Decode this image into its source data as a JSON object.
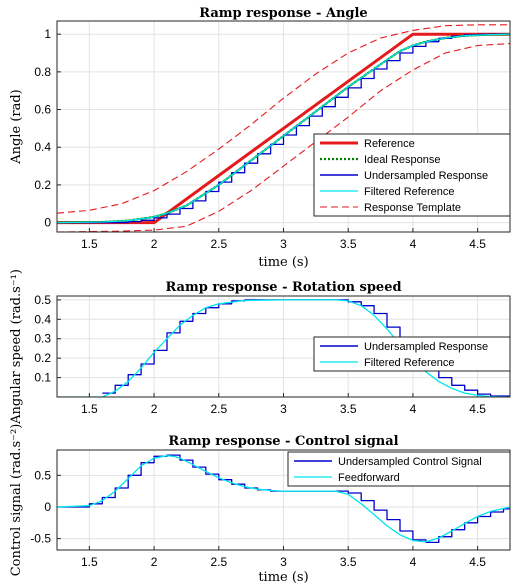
{
  "chart_data": [
    {
      "type": "line",
      "title": "Ramp response - Angle",
      "xlabel": "time (s)",
      "ylabel": "Angle (rad)",
      "xlim": [
        1.25,
        4.75
      ],
      "ylim": [
        -0.05,
        1.07
      ],
      "xticks": [
        "1.5",
        "2",
        "2.5",
        "3",
        "3.5",
        "4",
        "4.5"
      ],
      "yticks": [
        "0",
        "0.2",
        "0.4",
        "0.6",
        "0.8",
        "1"
      ],
      "grid": true,
      "legend_position": "lower-right",
      "series": [
        {
          "name": "Reference",
          "color": "#e41a1c",
          "style": "solid-thick",
          "x": [
            1.25,
            2.0,
            4.0,
            4.75
          ],
          "y": [
            0.0,
            0.0,
            1.0,
            1.0
          ]
        },
        {
          "name": "Ideal Response",
          "color": "#008000",
          "style": "dotted",
          "x": [
            1.25,
            1.6,
            1.8,
            2.0,
            2.1,
            2.25,
            2.5,
            2.75,
            3.0,
            3.25,
            3.5,
            3.75,
            3.9,
            4.0,
            4.1,
            4.25,
            4.4,
            4.6,
            4.75
          ],
          "y": [
            0.0,
            0.003,
            0.01,
            0.03,
            0.05,
            0.09,
            0.2,
            0.33,
            0.46,
            0.59,
            0.72,
            0.84,
            0.91,
            0.94,
            0.96,
            0.98,
            0.992,
            0.998,
            1.0
          ]
        },
        {
          "name": "Undersampled Response",
          "color": "#0000cc",
          "style": "step",
          "x": [
            1.25,
            1.8,
            1.9,
            2.0,
            2.1,
            2.2,
            2.3,
            2.4,
            2.5,
            2.6,
            2.7,
            2.8,
            2.9,
            3.0,
            3.1,
            3.2,
            3.3,
            3.4,
            3.5,
            3.6,
            3.7,
            3.8,
            3.9,
            4.0,
            4.1,
            4.2,
            4.3,
            4.4,
            4.5,
            4.6
          ],
          "y": [
            0.0,
            0.005,
            0.012,
            0.025,
            0.045,
            0.075,
            0.115,
            0.165,
            0.215,
            0.265,
            0.315,
            0.365,
            0.415,
            0.465,
            0.515,
            0.565,
            0.615,
            0.665,
            0.715,
            0.765,
            0.815,
            0.86,
            0.9,
            0.935,
            0.96,
            0.978,
            0.99,
            0.996,
            0.999,
            1.0
          ]
        },
        {
          "name": "Filtered Reference",
          "color": "#00e5ee",
          "style": "solid",
          "x": [
            1.25,
            1.6,
            1.8,
            2.0,
            2.1,
            2.25,
            2.5,
            2.75,
            3.0,
            3.25,
            3.5,
            3.75,
            3.9,
            4.0,
            4.1,
            4.25,
            4.4,
            4.6,
            4.75
          ],
          "y": [
            0.0,
            0.003,
            0.01,
            0.03,
            0.05,
            0.09,
            0.2,
            0.33,
            0.46,
            0.59,
            0.72,
            0.84,
            0.91,
            0.94,
            0.96,
            0.98,
            0.992,
            0.998,
            1.0
          ]
        },
        {
          "name": "Response Template",
          "color": "#e41a1c",
          "style": "dashed",
          "x": [
            1.25,
            1.5,
            1.75,
            2.0,
            2.25,
            2.5,
            2.75,
            3.0,
            3.25,
            3.5,
            3.75,
            4.0,
            4.25,
            4.5,
            4.75
          ],
          "y": [
            0.05,
            0.065,
            0.1,
            0.17,
            0.27,
            0.39,
            0.52,
            0.66,
            0.79,
            0.9,
            0.98,
            1.02,
            1.045,
            1.05,
            1.05
          ]
        },
        {
          "name": "",
          "color": "#e41a1c",
          "style": "dashed",
          "x": [
            1.25,
            1.5,
            1.75,
            2.0,
            2.25,
            2.5,
            2.75,
            3.0,
            3.25,
            3.5,
            3.75,
            4.0,
            4.25,
            4.5,
            4.75
          ],
          "y": [
            -0.05,
            -0.048,
            -0.045,
            -0.04,
            -0.02,
            0.06,
            0.17,
            0.3,
            0.43,
            0.56,
            0.7,
            0.81,
            0.9,
            0.94,
            0.95
          ]
        }
      ]
    },
    {
      "type": "line",
      "title": "Ramp response - Rotation speed",
      "xlabel": "",
      "ylabel": "Angular speed (rad.s⁻¹)",
      "xlim": [
        1.25,
        4.75
      ],
      "ylim": [
        0,
        0.52
      ],
      "xticks": [
        "1.5",
        "2",
        "2.5",
        "3",
        "3.5",
        "4",
        "4.5"
      ],
      "yticks": [
        "0.1",
        "0.2",
        "0.3",
        "0.4",
        "0.5"
      ],
      "grid": true,
      "legend_position": "right",
      "series": [
        {
          "name": "Undersampled Response",
          "color": "#0000cc",
          "style": "step",
          "x": [
            1.6,
            1.7,
            1.8,
            1.9,
            2.0,
            2.1,
            2.2,
            2.3,
            2.4,
            2.5,
            2.6,
            2.7,
            3.5,
            3.6,
            3.7,
            3.8,
            3.9,
            4.0,
            4.1,
            4.2,
            4.3,
            4.4,
            4.5,
            4.6
          ],
          "y": [
            0.02,
            0.06,
            0.115,
            0.17,
            0.24,
            0.33,
            0.39,
            0.43,
            0.46,
            0.48,
            0.495,
            0.5,
            0.49,
            0.47,
            0.43,
            0.36,
            0.29,
            0.21,
            0.15,
            0.1,
            0.06,
            0.035,
            0.015,
            0.005
          ]
        },
        {
          "name": "Filtered Reference",
          "color": "#00e5ee",
          "style": "solid",
          "x": [
            1.25,
            1.6,
            1.7,
            1.8,
            1.9,
            2.0,
            2.1,
            2.2,
            2.3,
            2.4,
            2.5,
            2.7,
            3.0,
            3.4,
            3.5,
            3.6,
            3.7,
            3.8,
            3.9,
            4.0,
            4.1,
            4.2,
            4.3,
            4.4,
            4.5,
            4.6,
            4.75
          ],
          "y": [
            0.0,
            0.0,
            0.03,
            0.08,
            0.15,
            0.23,
            0.3,
            0.37,
            0.42,
            0.46,
            0.48,
            0.497,
            0.5,
            0.5,
            0.495,
            0.47,
            0.42,
            0.35,
            0.27,
            0.2,
            0.13,
            0.08,
            0.045,
            0.02,
            0.008,
            0.002,
            0.0
          ]
        }
      ]
    },
    {
      "type": "line",
      "title": "Ramp response - Control signal",
      "xlabel": "time (s)",
      "ylabel": "Control signal (rad.s⁻²)",
      "xlim": [
        1.25,
        4.75
      ],
      "ylim": [
        -0.68,
        0.9
      ],
      "xticks": [
        "1.5",
        "2",
        "2.5",
        "3",
        "3.5",
        "4",
        "4.5"
      ],
      "yticks": [
        "-0.5",
        "0",
        "0.5"
      ],
      "grid": true,
      "legend_position": "top-right",
      "series": [
        {
          "name": "Undersampled Control Signal",
          "color": "#0000cc",
          "style": "step",
          "x": [
            1.25,
            1.5,
            1.6,
            1.7,
            1.8,
            1.9,
            2.0,
            2.1,
            2.2,
            2.3,
            2.4,
            2.5,
            2.6,
            2.7,
            2.8,
            2.9,
            3.0,
            3.1,
            3.2,
            3.3,
            3.4,
            3.5,
            3.6,
            3.7,
            3.8,
            3.9,
            4.0,
            4.1,
            4.2,
            4.3,
            4.4,
            4.5,
            4.6,
            4.7
          ],
          "y": [
            0.0,
            0.05,
            0.15,
            0.3,
            0.5,
            0.7,
            0.8,
            0.82,
            0.74,
            0.63,
            0.52,
            0.43,
            0.36,
            0.3,
            0.27,
            0.25,
            0.25,
            0.25,
            0.25,
            0.25,
            0.25,
            0.22,
            0.1,
            -0.05,
            -0.2,
            -0.38,
            -0.52,
            -0.56,
            -0.47,
            -0.36,
            -0.25,
            -0.15,
            -0.08,
            -0.03
          ]
        },
        {
          "name": "Feedforward",
          "color": "#00e5ee",
          "style": "solid",
          "x": [
            1.25,
            1.5,
            1.6,
            1.7,
            1.8,
            1.9,
            2.0,
            2.1,
            2.15,
            2.2,
            2.3,
            2.4,
            2.5,
            2.6,
            2.7,
            2.8,
            2.9,
            3.0,
            3.4,
            3.5,
            3.6,
            3.7,
            3.8,
            3.9,
            4.0,
            4.1,
            4.2,
            4.3,
            4.4,
            4.5,
            4.6,
            4.75
          ],
          "y": [
            0.0,
            0.02,
            0.1,
            0.25,
            0.45,
            0.65,
            0.77,
            0.81,
            0.8,
            0.77,
            0.67,
            0.56,
            0.46,
            0.38,
            0.32,
            0.28,
            0.26,
            0.25,
            0.25,
            0.2,
            0.05,
            -0.12,
            -0.3,
            -0.44,
            -0.53,
            -0.55,
            -0.49,
            -0.38,
            -0.26,
            -0.15,
            -0.07,
            0.0
          ]
        }
      ]
    }
  ]
}
